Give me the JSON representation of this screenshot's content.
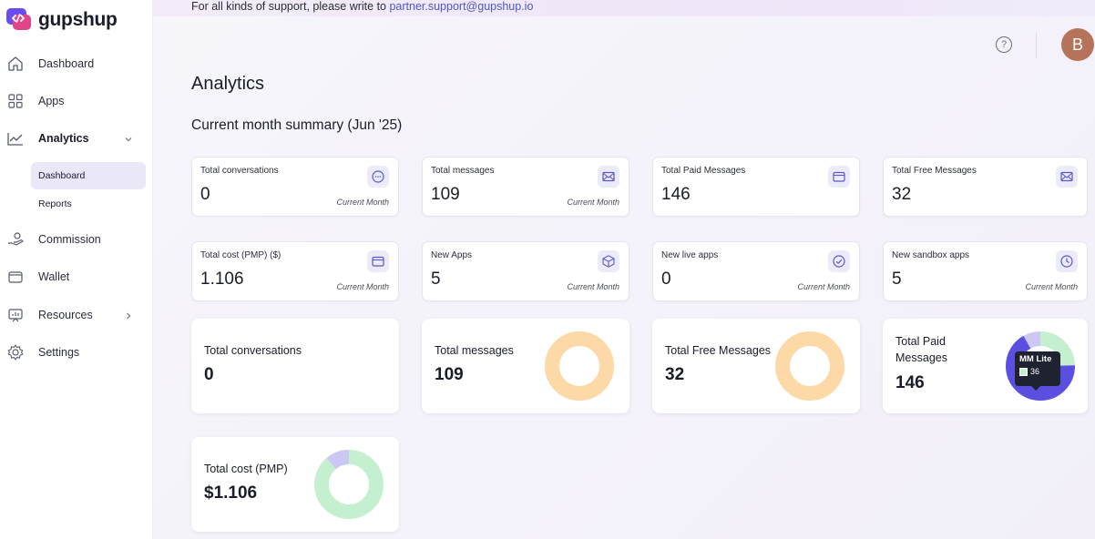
{
  "app": {
    "name": "gupshup"
  },
  "banner": {
    "text": "For all kinds of support, please write to ",
    "email": "partner.support@gupshup.io"
  },
  "sidebar": {
    "items": [
      {
        "label": "Dashboard",
        "icon": "home-icon"
      },
      {
        "label": "Apps",
        "icon": "grid-icon"
      },
      {
        "label": "Analytics",
        "icon": "chart-line-icon",
        "expanded": true
      },
      {
        "label": "Commission",
        "icon": "hand-coins-icon"
      },
      {
        "label": "Wallet",
        "icon": "wallet-icon"
      },
      {
        "label": "Resources",
        "icon": "resources-icon"
      },
      {
        "label": "Settings",
        "icon": "gear-icon"
      }
    ],
    "analytics_sub": [
      {
        "label": "Dashboard",
        "active": true
      },
      {
        "label": "Reports",
        "active": false
      }
    ]
  },
  "header": {
    "help_icon": "?",
    "avatar_initial": "B",
    "avatar_color": "#b5745a"
  },
  "page": {
    "title": "Analytics",
    "section_title": "Current month summary (Jun '25)"
  },
  "stats": [
    {
      "label": "Total conversations",
      "value": "0",
      "foot": "Current Month",
      "icon": "chat-icon"
    },
    {
      "label": "Total messages",
      "value": "109",
      "foot": "Current Month",
      "icon": "mail-icon"
    },
    {
      "label": "Total Paid Messages",
      "value": "146",
      "foot": "",
      "icon": "wallet-icon"
    },
    {
      "label": "Total Free Messages",
      "value": "32",
      "foot": "",
      "icon": "mail-icon"
    },
    {
      "label": "Total cost (PMP) ($)",
      "value": "1.106",
      "foot": "Current Month",
      "icon": "wallet-icon"
    },
    {
      "label": "New Apps",
      "value": "5",
      "foot": "Current Month",
      "icon": "box-icon"
    },
    {
      "label": "New live apps",
      "value": "0",
      "foot": "Current Month",
      "icon": "check-circle-icon"
    },
    {
      "label": "New sandbox apps",
      "value": "5",
      "foot": "Current Month",
      "icon": "clock-icon"
    }
  ],
  "charts": [
    {
      "label": "Total conversations",
      "value": "0"
    },
    {
      "label": "Total messages",
      "value": "109"
    },
    {
      "label": "Total Free Messages",
      "value": "32"
    },
    {
      "label": "Total Paid\nMessages",
      "value": "146"
    },
    {
      "label": "Total cost (PMP)",
      "value": "$1.106"
    }
  ],
  "tooltip": {
    "title": "MM Lite",
    "value": "36"
  },
  "colors": {
    "accent": "#4b57d1",
    "donut_orange": "#fdd9a8",
    "donut_green": "#c5f0cf",
    "donut_purple": "#5b4fe0",
    "donut_lavender": "#cbc8f6"
  },
  "chart_data": [
    {
      "type": "pie",
      "title": "Total messages",
      "slices": [
        {
          "value": 109,
          "color": "#fdd9a8"
        }
      ]
    },
    {
      "type": "pie",
      "title": "Total Free Messages",
      "slices": [
        {
          "value": 32,
          "color": "#fdd9a8"
        }
      ]
    },
    {
      "type": "pie",
      "title": "Total Paid Messages",
      "slices": [
        {
          "name": "MM Lite",
          "value": 36,
          "color": "#c5f0cf"
        },
        {
          "value": 98,
          "color": "#5b4fe0"
        },
        {
          "value": 12,
          "color": "#cbc8f6"
        }
      ]
    },
    {
      "type": "pie",
      "title": "Total cost (PMP)",
      "slices": [
        {
          "value": 0.98,
          "color": "#c5f0cf"
        },
        {
          "value": 0.126,
          "color": "#cbc8f6"
        }
      ]
    }
  ]
}
